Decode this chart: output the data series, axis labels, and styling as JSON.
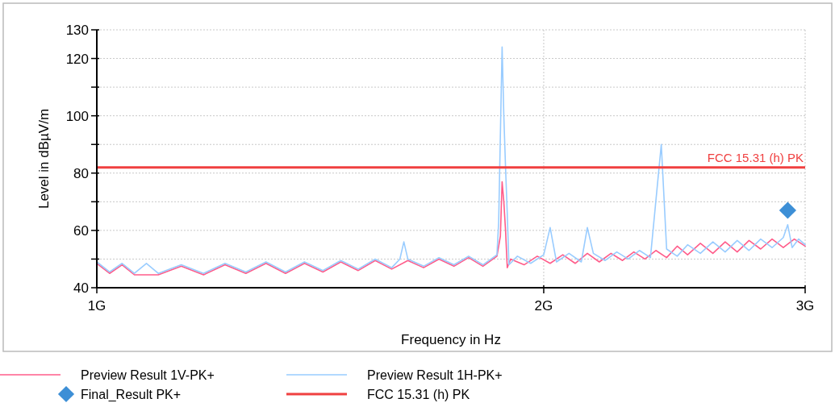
{
  "chart_data": {
    "type": "line",
    "xlabel": "Frequency in Hz",
    "ylabel": "Level in dBµV/m",
    "log": "x",
    "grid": true,
    "legend": "bottom",
    "line_style": "solid",
    "xlim": [
      1,
      3
    ],
    "xticks": [
      {
        "value": 1,
        "label": "1G"
      },
      {
        "value": 2,
        "label": "2G"
      },
      {
        "value": 3,
        "label": "3G"
      }
    ],
    "ylim": [
      40,
      130
    ],
    "yticks": [
      40,
      {
        "value": 50,
        "label": null
      },
      60,
      {
        "value": 70,
        "label": null
      },
      80,
      {
        "value": 90,
        "label": null
      },
      100,
      {
        "value": 110,
        "label": null
      },
      120,
      130
    ],
    "series": [
      {
        "name": "Preview Result 1V-PK+",
        "color": "#ff5c8a",
        "x": [
          1.0,
          1.02,
          1.04,
          1.06,
          1.1,
          1.14,
          1.18,
          1.22,
          1.26,
          1.3,
          1.34,
          1.38,
          1.42,
          1.46,
          1.5,
          1.54,
          1.58,
          1.62,
          1.66,
          1.7,
          1.74,
          1.78,
          1.82,
          1.86,
          1.87,
          1.875,
          1.88,
          1.885,
          1.89,
          1.9,
          1.94,
          1.98,
          2.02,
          2.06,
          2.1,
          2.14,
          2.18,
          2.22,
          2.26,
          2.3,
          2.34,
          2.38,
          2.42,
          2.46,
          2.5,
          2.55,
          2.6,
          2.65,
          2.7,
          2.75,
          2.8,
          2.85,
          2.9,
          2.95,
          3.0
        ],
        "values": [
          48.5,
          45,
          48,
          44.5,
          44.5,
          47.5,
          44.5,
          48,
          45,
          48.5,
          45,
          48.5,
          45.5,
          49,
          46,
          49.5,
          46.5,
          49.5,
          47,
          50,
          47.5,
          50.5,
          47.5,
          51,
          58,
          77,
          70,
          60,
          47,
          50,
          48,
          51,
          48.5,
          51.5,
          48.5,
          52,
          49,
          52,
          49.5,
          52.5,
          50,
          53,
          50.5,
          54.5,
          51.5,
          55.5,
          52,
          56,
          52.5,
          56.5,
          53.5,
          57,
          54,
          57,
          54.5
        ]
      },
      {
        "name": "Preview Result 1H-PK+",
        "color": "#99ccff",
        "x": [
          1.0,
          1.02,
          1.04,
          1.06,
          1.08,
          1.1,
          1.14,
          1.18,
          1.22,
          1.26,
          1.3,
          1.34,
          1.38,
          1.42,
          1.46,
          1.5,
          1.54,
          1.58,
          1.6,
          1.61,
          1.62,
          1.66,
          1.7,
          1.74,
          1.78,
          1.82,
          1.86,
          1.865,
          1.875,
          1.88,
          1.885,
          1.89,
          1.895,
          1.92,
          1.96,
          2.0,
          2.02,
          2.04,
          2.08,
          2.12,
          2.14,
          2.16,
          2.2,
          2.24,
          2.28,
          2.32,
          2.36,
          2.4,
          2.42,
          2.46,
          2.5,
          2.55,
          2.6,
          2.65,
          2.7,
          2.75,
          2.8,
          2.85,
          2.9,
          2.92,
          2.94,
          2.97,
          3.0
        ],
        "values": [
          49,
          45.5,
          48.5,
          45,
          48.5,
          45,
          48,
          45,
          48.5,
          45.5,
          49,
          45.5,
          49,
          46,
          49.5,
          46.5,
          50,
          47,
          50,
          56,
          50,
          47.5,
          50.5,
          48,
          51,
          48,
          51.5,
          63,
          124,
          100,
          82,
          66,
          48,
          51,
          48.5,
          51.5,
          61,
          49,
          52,
          49,
          61,
          52,
          49.5,
          52.5,
          50,
          53,
          50.5,
          90,
          53.5,
          51,
          55,
          52,
          56,
          52.5,
          56.5,
          53,
          57,
          54,
          57.5,
          62,
          54,
          57,
          55
        ]
      },
      {
        "name": "Final_Result PK+",
        "type": "scatter",
        "marker": "diamond",
        "color": "#3d8fd6",
        "x": [
          2.92
        ],
        "values": [
          67
        ]
      }
    ],
    "ref_lines": [
      {
        "axis": "y",
        "value": 82,
        "label": "FCC 15.31 (h) PK",
        "color": "#f04040"
      }
    ]
  }
}
